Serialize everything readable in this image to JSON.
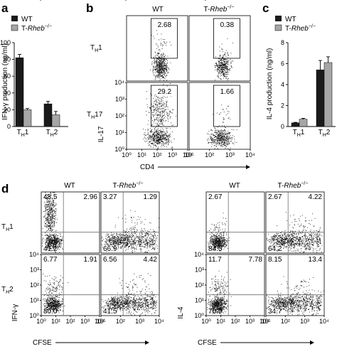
{
  "panels": {
    "a": "a",
    "b": "b",
    "c": "c",
    "d": "d"
  },
  "legend": {
    "wt": "WT",
    "ko_prefix": "T-",
    "ko_gene": "Rheb",
    "ko_sup": "−/−"
  },
  "colors": {
    "wt": "#1a1a1a",
    "ko": "#a6a6a6"
  },
  "chart_data": [
    {
      "id": "a",
      "type": "bar",
      "ylabel": "IFN-γ production (ng/ml)",
      "ylim": [
        0,
        100
      ],
      "yticks": [
        "0",
        "20",
        "40",
        "60",
        "80",
        "100"
      ],
      "categories": [
        "TH1",
        "TH2"
      ],
      "series": [
        {
          "name": "WT",
          "values": [
            82,
            27
          ],
          "errors": [
            4,
            3
          ]
        },
        {
          "name": "T-Rheb−/−",
          "values": [
            20,
            14
          ],
          "errors": [
            1.5,
            4
          ]
        }
      ]
    },
    {
      "id": "c",
      "type": "bar",
      "ylabel": "IL-4 production (ng/ml)",
      "ylim": [
        0,
        8
      ],
      "yticks": [
        "0",
        "2",
        "4",
        "6",
        "8"
      ],
      "categories": [
        "TH1",
        "TH2"
      ],
      "series": [
        {
          "name": "WT",
          "values": [
            0.35,
            5.4
          ],
          "errors": [
            0.05,
            0.9
          ]
        },
        {
          "name": "T-Rheb−/−",
          "values": [
            0.7,
            6.1
          ],
          "errors": [
            0.08,
            0.55
          ]
        }
      ]
    },
    {
      "id": "b",
      "type": "scatter",
      "xlabel": "CD4",
      "ylabel": "IL-17",
      "columns": [
        "WT",
        "T-Rheb−/−"
      ],
      "rows": [
        "TH1",
        "TH17"
      ],
      "xticks": [
        "10⁰",
        "10¹",
        "10²",
        "10³",
        "10⁴"
      ],
      "yticks": [
        "10⁰",
        "10¹",
        "10²",
        "10³",
        "10⁴"
      ],
      "gate_percent": [
        [
          "2.68",
          "0.38"
        ],
        [
          "29.2",
          "1.66"
        ]
      ]
    },
    {
      "id": "d-left",
      "type": "scatter",
      "xlabel": "CFSE",
      "ylabel": "IFN-γ",
      "columns": [
        "WT",
        "T-Rheb−/−"
      ],
      "rows": [
        "TH1",
        "TH2"
      ],
      "xticks": [
        "10⁰",
        "10¹",
        "10²",
        "10³",
        "10⁴"
      ],
      "yticks": [
        "10⁰",
        "10¹",
        "10²",
        "10³",
        "10⁴"
      ],
      "quadrants": [
        [
          [
            "48.5",
            "2.96",
            "41.2"
          ],
          [
            "3.27",
            "1.29",
            "66.9"
          ]
        ],
        [
          [
            "6.77",
            "1.91",
            "80.0"
          ],
          [
            "6.56",
            "4.42",
            "41.5"
          ]
        ]
      ]
    },
    {
      "id": "d-right",
      "type": "scatter",
      "xlabel": "CFSE",
      "ylabel": "IL-4",
      "columns": [
        "WT",
        "T-Rheb−/−"
      ],
      "rows": [
        "TH1",
        "TH2"
      ],
      "xticks": [
        "10⁰",
        "10¹",
        "10²",
        "10³",
        "10⁴"
      ],
      "yticks": [
        "10⁰",
        "10¹",
        "10²",
        "10³",
        "10⁴"
      ],
      "quadrants": [
        [
          [
            "2.67",
            "",
            "84.5"
          ],
          [
            "2.67",
            "4.22",
            "64.2"
          ]
        ],
        [
          [
            "11.7",
            "7.78",
            "70.9"
          ],
          [
            "8.15",
            "13.4",
            "34.7"
          ]
        ]
      ]
    }
  ]
}
